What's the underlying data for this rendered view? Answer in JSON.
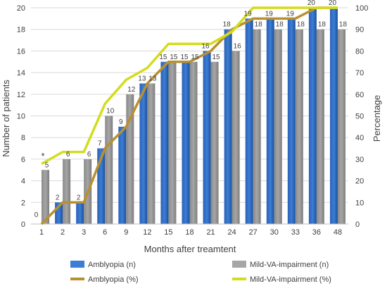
{
  "chart_data": {
    "type": "bar",
    "categories": [
      "1",
      "2",
      "3",
      "6",
      "9",
      "12",
      "15",
      "18",
      "21",
      "24",
      "27",
      "30",
      "33",
      "36",
      "48"
    ],
    "xlabel": "Months after treamtent",
    "ylabel": "Number of patients",
    "y2label": "Percentage",
    "ylim": [
      0,
      20
    ],
    "y2lim": [
      0,
      100
    ],
    "yticks": [
      "0",
      "2",
      "4",
      "6",
      "8",
      "10",
      "12",
      "14",
      "16",
      "18",
      "20"
    ],
    "y2ticks": [
      "0",
      "10",
      "20",
      "30",
      "40",
      "50",
      "60",
      "70",
      "80",
      "90",
      "100"
    ],
    "grid": true,
    "legend_position": "bottom",
    "annotation": "*",
    "series": [
      {
        "name": "Amblyopia (n)",
        "kind": "bar",
        "axis": "left",
        "color": "#3a7fd5",
        "values": [
          0,
          2,
          2,
          7,
          9,
          13,
          15,
          15,
          16,
          18,
          19,
          19,
          19,
          20,
          20
        ],
        "labels": [
          "0",
          "2",
          "2",
          "7",
          "9",
          "13",
          "15",
          "15",
          "16",
          "18",
          "19",
          "19",
          "19",
          "20",
          "20"
        ]
      },
      {
        "name": "Mild-VA-impairment (n)",
        "kind": "bar",
        "axis": "left",
        "color": "#a6a6a6",
        "values": [
          5,
          6,
          6,
          10,
          12,
          13,
          15,
          15,
          15,
          16,
          18,
          18,
          18,
          18,
          18
        ],
        "labels": [
          "5",
          "6",
          "6",
          "10",
          "12",
          "13",
          "15",
          "15",
          "15",
          "16",
          "18",
          "18",
          "18",
          "18",
          "18"
        ]
      },
      {
        "name": "Amblyopia (%)",
        "kind": "line",
        "axis": "right",
        "color": "#b9902f",
        "values": [
          0,
          10,
          10,
          35,
          45,
          65,
          75,
          75,
          80,
          90,
          95,
          95,
          95,
          100,
          100
        ]
      },
      {
        "name": "Mild-VA-impairment (%)",
        "kind": "line",
        "axis": "right",
        "color": "#d4dc1e",
        "values": [
          27.8,
          33.3,
          33.3,
          55.6,
          66.7,
          72.2,
          83.3,
          83.3,
          83.3,
          88.9,
          100,
          100,
          100,
          100,
          100
        ]
      }
    ]
  }
}
